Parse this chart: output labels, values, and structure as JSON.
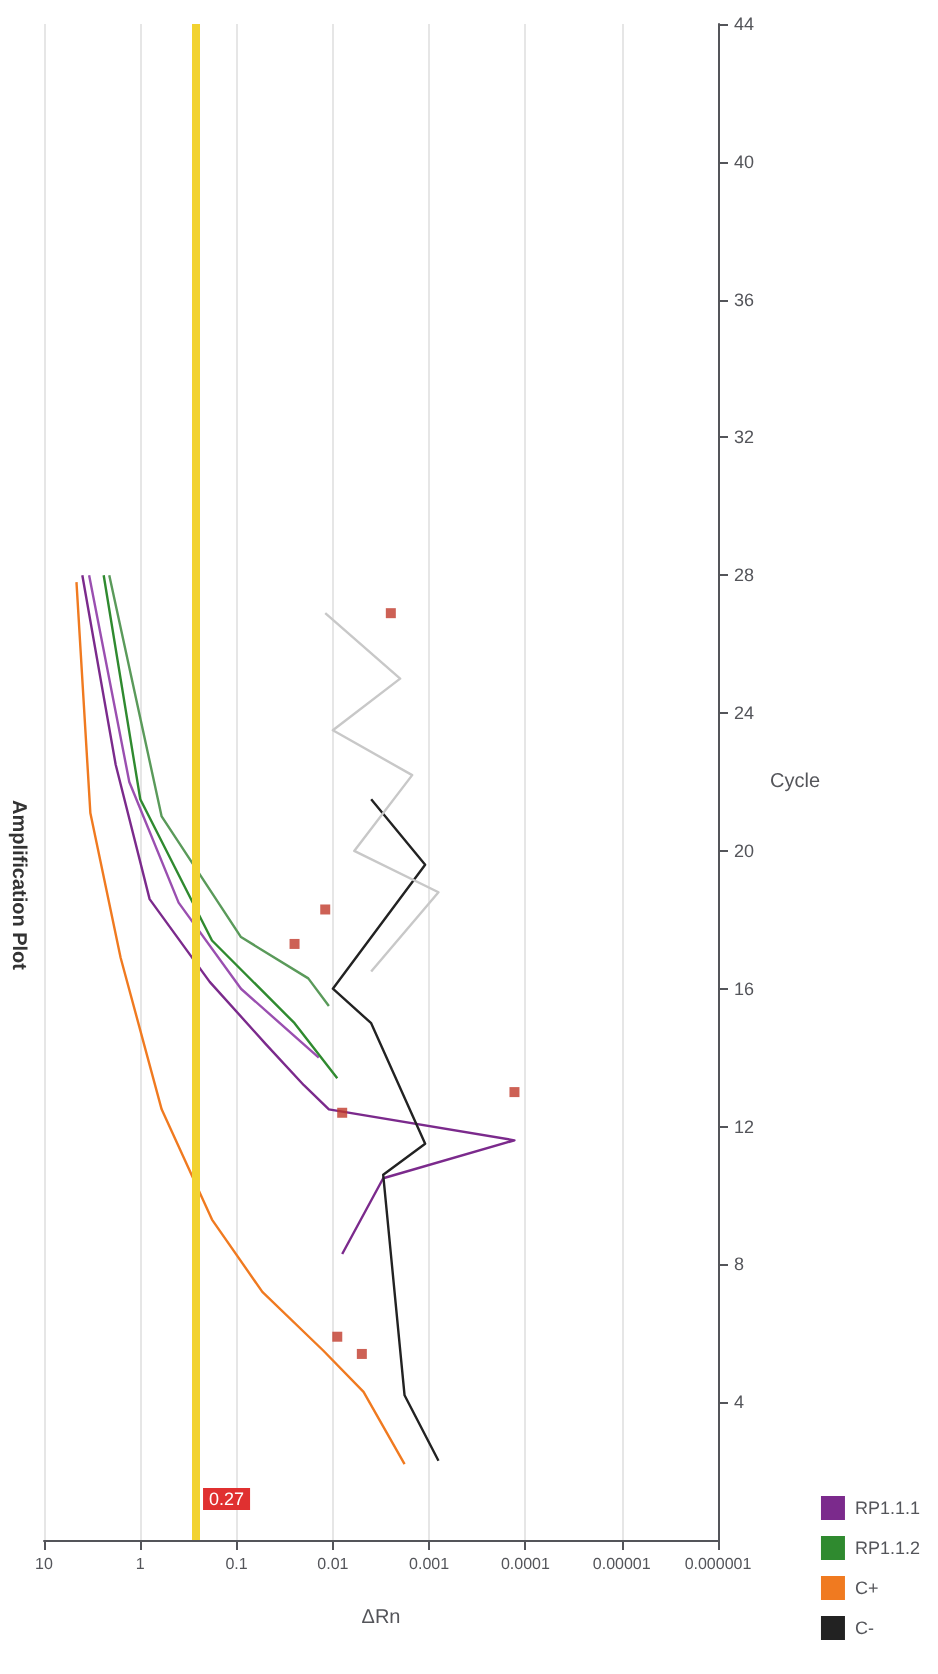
{
  "chart_data": {
    "type": "line",
    "title": "Amplification Plot",
    "xlabel": "ΔRn",
    "ylabel": "Cycle",
    "log": "x",
    "grid": "x",
    "legend": "bottom right",
    "marker": "none",
    "ylim": [
      0,
      44
    ],
    "yticks": [
      4,
      8,
      12,
      16,
      20,
      24,
      28,
      32,
      36,
      40,
      44
    ],
    "xlim": [
      10,
      1e-06
    ],
    "xticks": [
      10,
      1,
      0.1,
      0.01,
      0.001,
      0.0001,
      {
        "value": 1e-05,
        "label": "0.00001"
      },
      {
        "value": 1e-06,
        "label": "0.000001"
      }
    ],
    "ref_lines": [
      {
        "axis": "x",
        "value": 0.27,
        "label": "0.27",
        "color": "#f2d230"
      }
    ],
    "series": [
      {
        "name": "RP1.1.1",
        "color": "#7b2a8c",
        "values": [
          28,
          22.5,
          18.6,
          16.2,
          14.4,
          13.2,
          12.5,
          11.6,
          10.5,
          8.3
        ],
        "x": [
          4,
          1.8,
          0.8,
          0.19,
          0.05,
          0.02,
          0.011,
          0.00013,
          0.003,
          0.008
        ]
      },
      {
        "name": null,
        "color": "#9a4fb0",
        "values": [
          28,
          22,
          18.5,
          16,
          14
        ],
        "x": [
          3.4,
          1.3,
          0.4,
          0.09,
          0.014
        ]
      },
      {
        "name": "RP1.1.2",
        "color": "#2f8a2f",
        "values": [
          28,
          21.5,
          17.4,
          15,
          13.4
        ],
        "x": [
          2.4,
          1.0,
          0.18,
          0.025,
          0.009
        ]
      },
      {
        "name": null,
        "color": "#5a9a5a",
        "values": [
          28,
          21,
          17.5,
          16.3,
          15.5
        ],
        "x": [
          2.1,
          0.6,
          0.09,
          0.018,
          0.011
        ]
      },
      {
        "name": "C+",
        "color": "#f07a20",
        "values": [
          27.8,
          21.1,
          16.9,
          12.5,
          9.3,
          7.2,
          5.5,
          4.3,
          2.2
        ],
        "x": [
          4.6,
          3.3,
          1.6,
          0.6,
          0.18,
          0.054,
          0.0126,
          0.0048,
          0.0018
        ]
      },
      {
        "name": "C-",
        "color": "#222222",
        "values": [
          21.5,
          19.6,
          16,
          15,
          11.5,
          10.6,
          4.2,
          2.3
        ],
        "x": [
          0.004,
          0.0011,
          0.01,
          0.004,
          0.0011,
          0.003,
          0.0018,
          0.0008
        ]
      },
      {
        "name": null,
        "color": "#c8c8c8",
        "values": [
          26.9,
          25,
          23.5,
          22.2,
          20,
          18.8,
          16.5
        ],
        "x": [
          0.012,
          0.002,
          0.01,
          0.0015,
          0.006,
          0.0008,
          0.004
        ]
      },
      {
        "name": null,
        "type": "scatter",
        "marker": "square",
        "color": "#c0392b",
        "values": [
          26.9,
          18.3,
          17.3,
          13,
          12.4,
          5.9,
          5.4
        ],
        "x": [
          0.0025,
          0.012,
          0.025,
          0.00013,
          0.008,
          0.009,
          0.005
        ]
      }
    ]
  }
}
